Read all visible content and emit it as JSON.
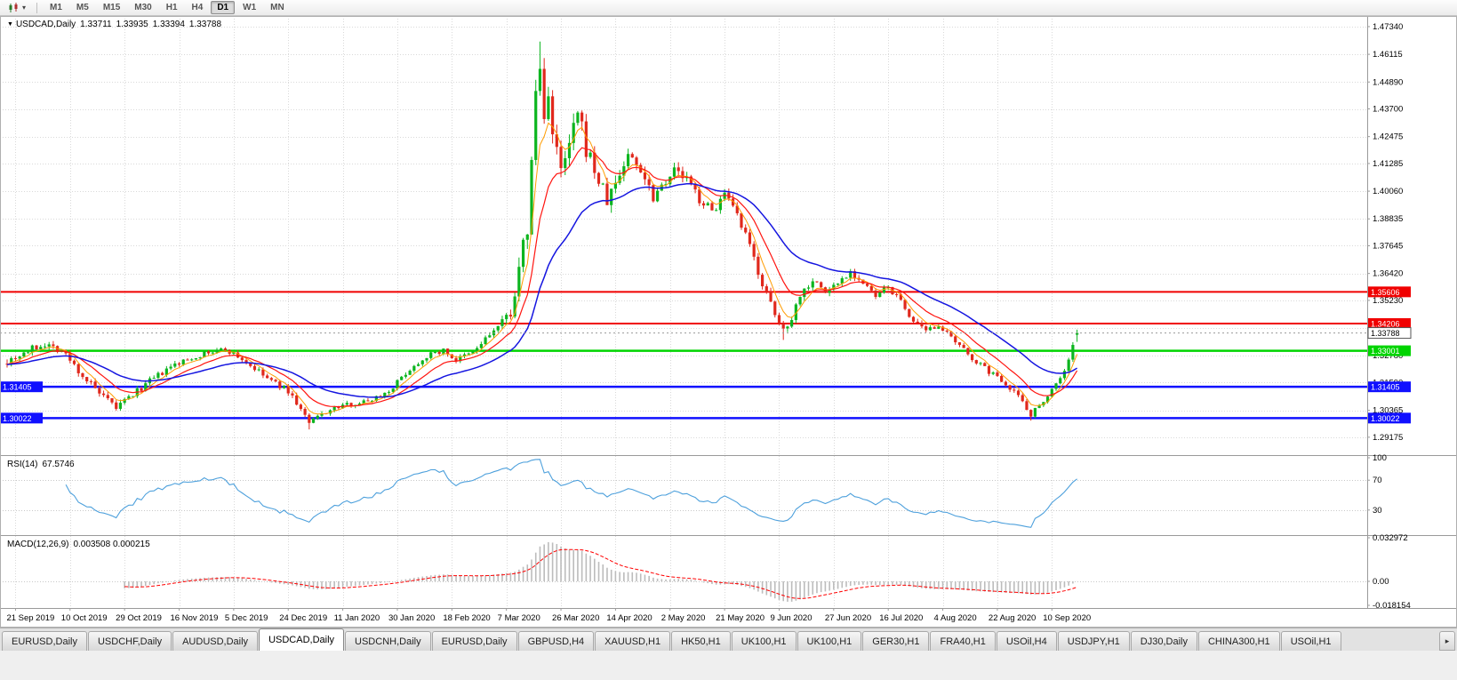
{
  "toolbar": {
    "timeframes": [
      "M1",
      "M5",
      "M15",
      "M30",
      "H1",
      "H4",
      "D1",
      "W1",
      "MN"
    ],
    "active_timeframe": "D1"
  },
  "main_pane": {
    "expand_glyph": "▼",
    "symbol_label": "USDCAD,Daily",
    "open": "1.33711",
    "high": "1.33935",
    "low": "1.33394",
    "close": "1.33788"
  },
  "rsi_pane": {
    "name": "RSI(14)",
    "value": "67.5746"
  },
  "macd_pane": {
    "name": "MACD(12,26,9)",
    "values": "0.003508 0.000215"
  },
  "colors": {
    "up": "#0cb51f",
    "down": "#e0281c",
    "grid": "#d9d9d9",
    "axis_text": "#000000",
    "rsi_line": "#4da0dc",
    "macd_hist": "#bcbcbc",
    "macd_signal": "#ff0000",
    "ma_fast": "#ff9c00",
    "ma_mid": "#ff1510",
    "ma_slow": "#1515e0"
  },
  "chart_data": {
    "type": "candlestick",
    "symbol": "USDCAD",
    "timeframe": "Daily",
    "seed": 7,
    "visible_range": {
      "price_top": 1.4781,
      "price_bottom": 1.28384,
      "bars": 256
    },
    "y_ticks": [
      "1.47340",
      "1.46115",
      "1.44890",
      "1.43700",
      "1.42475",
      "1.41285",
      "1.40060",
      "1.38835",
      "1.37645",
      "1.36420",
      "1.35230",
      "1.34005",
      "1.32780",
      "1.31590",
      "1.30365",
      "1.29175"
    ],
    "x_labels": [
      {
        "i": 2,
        "label": "21 Sep 2019"
      },
      {
        "i": 15,
        "label": "10 Oct 2019"
      },
      {
        "i": 28,
        "label": "29 Oct 2019"
      },
      {
        "i": 41,
        "label": "16 Nov 2019"
      },
      {
        "i": 54,
        "label": "5 Dec 2019"
      },
      {
        "i": 67,
        "label": "24 Dec 2019"
      },
      {
        "i": 80,
        "label": "11 Jan 2020"
      },
      {
        "i": 93,
        "label": "30 Jan 2020"
      },
      {
        "i": 106,
        "label": "18 Feb 2020"
      },
      {
        "i": 119,
        "label": "7 Mar 2020"
      },
      {
        "i": 132,
        "label": "26 Mar 2020"
      },
      {
        "i": 145,
        "label": "14 Apr 2020"
      },
      {
        "i": 158,
        "label": "2 May 2020"
      },
      {
        "i": 171,
        "label": "21 May 2020"
      },
      {
        "i": 184,
        "label": "9 Jun 2020"
      },
      {
        "i": 197,
        "label": "27 Jun 2020"
      },
      {
        "i": 210,
        "label": "16 Jul 2020"
      },
      {
        "i": 223,
        "label": "4 Aug 2020"
      },
      {
        "i": 236,
        "label": "22 Aug 2020"
      },
      {
        "i": 249,
        "label": "10 Sep 2020"
      }
    ],
    "close_anchors": [
      [
        0,
        1.3258,
        0.0035
      ],
      [
        5,
        1.33,
        0.003
      ],
      [
        9,
        1.3332,
        0.0028
      ],
      [
        13,
        1.3302,
        0.003
      ],
      [
        18,
        1.319,
        0.003
      ],
      [
        23,
        1.309,
        0.0028
      ],
      [
        26,
        1.3048,
        0.0026
      ],
      [
        29,
        1.3092,
        0.0026
      ],
      [
        34,
        1.3165,
        0.0024
      ],
      [
        40,
        1.3238,
        0.0022
      ],
      [
        46,
        1.3282,
        0.002
      ],
      [
        52,
        1.3308,
        0.002
      ],
      [
        56,
        1.3262,
        0.0022
      ],
      [
        62,
        1.3178,
        0.0022
      ],
      [
        67,
        1.3122,
        0.0022
      ],
      [
        70,
        1.3042,
        0.0024
      ],
      [
        72,
        1.2978,
        0.0022
      ],
      [
        75,
        1.3022,
        0.002
      ],
      [
        80,
        1.3058,
        0.0018
      ],
      [
        86,
        1.3078,
        0.0018
      ],
      [
        91,
        1.3122,
        0.0018
      ],
      [
        95,
        1.3202,
        0.002
      ],
      [
        100,
        1.3278,
        0.002
      ],
      [
        104,
        1.3302,
        0.002
      ],
      [
        107,
        1.3258,
        0.0022
      ],
      [
        111,
        1.3292,
        0.0024
      ],
      [
        115,
        1.3372,
        0.003
      ],
      [
        118,
        1.342,
        0.004
      ],
      [
        120,
        1.3478,
        0.0055
      ],
      [
        122,
        1.3642,
        0.0075
      ],
      [
        124,
        1.3852,
        0.0105
      ],
      [
        125,
        1.4108,
        0.0125
      ],
      [
        126,
        1.4452,
        0.0135
      ],
      [
        127,
        1.4542,
        0.013
      ],
      [
        128,
        1.4318,
        0.0125
      ],
      [
        129,
        1.4478,
        0.012
      ],
      [
        130,
        1.4252,
        0.011
      ],
      [
        132,
        1.4078,
        0.01
      ],
      [
        134,
        1.4202,
        0.009
      ],
      [
        136,
        1.4342,
        0.0085
      ],
      [
        138,
        1.4198,
        0.008
      ],
      [
        141,
        1.4052,
        0.007
      ],
      [
        143,
        1.3962,
        0.0065
      ],
      [
        146,
        1.4082,
        0.006
      ],
      [
        148,
        1.4168,
        0.0058
      ],
      [
        151,
        1.4108,
        0.0052
      ],
      [
        154,
        1.3988,
        0.005
      ],
      [
        157,
        1.4062,
        0.0046
      ],
      [
        159,
        1.4098,
        0.0044
      ],
      [
        162,
        1.4058,
        0.004
      ],
      [
        165,
        1.3972,
        0.004
      ],
      [
        168,
        1.3918,
        0.0038
      ],
      [
        171,
        1.3988,
        0.0038
      ],
      [
        174,
        1.3892,
        0.0036
      ],
      [
        177,
        1.3762,
        0.0036
      ],
      [
        180,
        1.3598,
        0.0036
      ],
      [
        183,
        1.3452,
        0.0034
      ],
      [
        185,
        1.3392,
        0.0034
      ],
      [
        187,
        1.3452,
        0.0034
      ],
      [
        189,
        1.3548,
        0.0032
      ],
      [
        192,
        1.3618,
        0.003
      ],
      [
        195,
        1.3558,
        0.0028
      ],
      [
        198,
        1.3602,
        0.0028
      ],
      [
        201,
        1.3652,
        0.0026
      ],
      [
        204,
        1.3598,
        0.0026
      ],
      [
        207,
        1.3538,
        0.0026
      ],
      [
        210,
        1.3582,
        0.0024
      ],
      [
        213,
        1.3518,
        0.0024
      ],
      [
        216,
        1.3428,
        0.0024
      ],
      [
        219,
        1.3382,
        0.0022
      ],
      [
        222,
        1.3418,
        0.0022
      ],
      [
        225,
        1.3352,
        0.0022
      ],
      [
        228,
        1.3302,
        0.002
      ],
      [
        231,
        1.3252,
        0.002
      ],
      [
        234,
        1.3208,
        0.002
      ],
      [
        237,
        1.3172,
        0.002
      ],
      [
        240,
        1.3122,
        0.002
      ],
      [
        242,
        1.3078,
        0.002
      ],
      [
        244,
        1.3018,
        0.0022
      ],
      [
        246,
        1.3062,
        0.002
      ],
      [
        248,
        1.3102,
        0.0018
      ],
      [
        250,
        1.3158,
        0.0018
      ],
      [
        252,
        1.3208,
        0.0018
      ],
      [
        254,
        1.3322,
        0.0022
      ],
      [
        255,
        1.3379,
        0.0014
      ]
    ],
    "extremes": [
      {
        "i": 127,
        "high": 1.4668
      },
      {
        "i": 72,
        "low": 1.2952
      },
      {
        "i": 185,
        "low": 1.3348
      },
      {
        "i": 244,
        "low": 1.2991
      }
    ],
    "last_bar": {
      "open": 1.33711,
      "high": 1.33935,
      "low": 1.33394,
      "close": 1.33788
    },
    "levels": [
      {
        "price": 1.35606,
        "label": "1.35606",
        "color": "#f00000",
        "width": 2,
        "side": "right"
      },
      {
        "price": 1.34206,
        "label": "1.34206",
        "color": "#f00000",
        "width": 2,
        "side": "right"
      },
      {
        "price": 1.33001,
        "label": "1.33001",
        "color": "#00d400",
        "width": 2.5,
        "side": "right"
      },
      {
        "price": 1.31405,
        "label": "1.31405",
        "color": "#1010ff",
        "width": 2.5,
        "side": "both"
      },
      {
        "price": 1.30022,
        "label": "1.30022",
        "color": "#1010ff",
        "width": 2.5,
        "side": "both"
      }
    ],
    "current_price": 1.33788,
    "current_price_label": "1.33788",
    "moving_averages": [
      {
        "period": 5,
        "type": "ema",
        "color": "#ff9c00",
        "width": 1
      },
      {
        "period": 12,
        "type": "ema",
        "color": "#ff1510",
        "width": 1.2
      },
      {
        "period": 30,
        "type": "ema",
        "color": "#1515e0",
        "width": 1.5
      }
    ],
    "rsi": {
      "period": 14,
      "current": 67.5746,
      "levels": [
        70,
        30
      ],
      "scale_ticks": [
        "100",
        "70",
        "30"
      ]
    },
    "macd": {
      "fast": 12,
      "slow": 26,
      "signal": 9,
      "current_main": 0.003508,
      "current_signal": 0.000215,
      "scale_top": 0.032972,
      "scale_bottom": -0.018154,
      "scale_ticks": [
        "0.032972",
        "0.00",
        "-0.018154"
      ]
    }
  },
  "tabs": [
    {
      "label": "EURUSD,Daily",
      "active": false
    },
    {
      "label": "USDCHF,Daily",
      "active": false
    },
    {
      "label": "AUDUSD,Daily",
      "active": false
    },
    {
      "label": "USDCAD,Daily",
      "active": true
    },
    {
      "label": "USDCNH,Daily",
      "active": false
    },
    {
      "label": "EURUSD,Daily",
      "active": false
    },
    {
      "label": "GBPUSD,H4",
      "active": false
    },
    {
      "label": "XAUUSD,H1",
      "active": false
    },
    {
      "label": "HK50,H1",
      "active": false
    },
    {
      "label": "UK100,H1",
      "active": false
    },
    {
      "label": "UK100,H1",
      "active": false
    },
    {
      "label": "GER30,H1",
      "active": false
    },
    {
      "label": "FRA40,H1",
      "active": false
    },
    {
      "label": "USOil,H4",
      "active": false
    },
    {
      "label": "USDJPY,H1",
      "active": false
    },
    {
      "label": "DJ30,Daily",
      "active": false
    },
    {
      "label": "CHINA300,H1",
      "active": false
    },
    {
      "label": "USOil,H1",
      "active": false
    }
  ],
  "tab_scroll_glyph": "▸"
}
